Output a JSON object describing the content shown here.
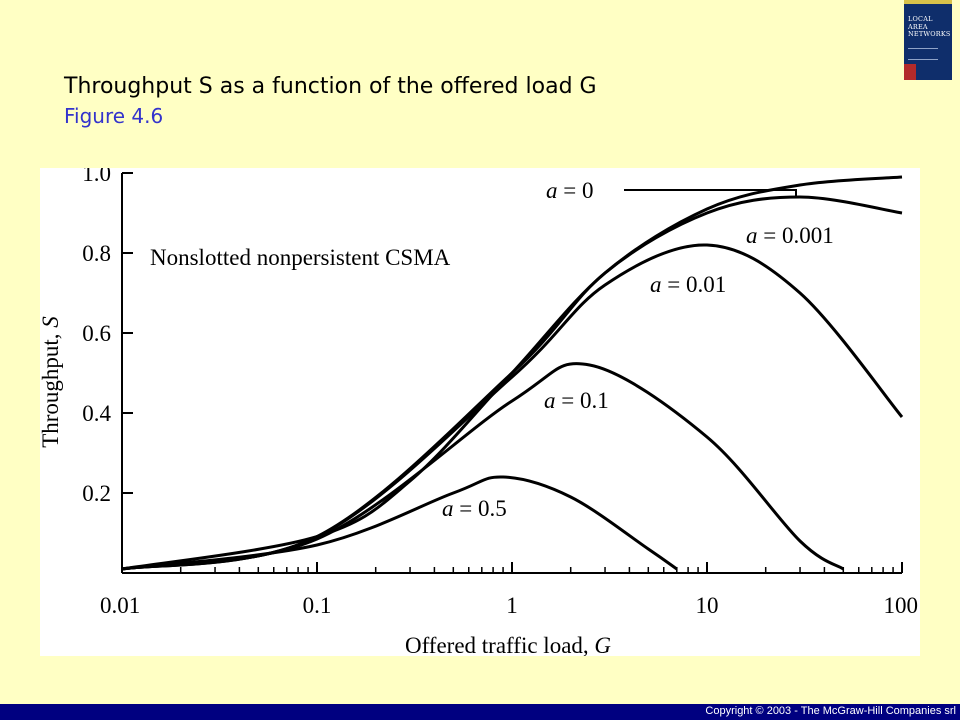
{
  "slide": {
    "title": "Throughput S as a function of the offered load G",
    "subtitle": "Figure 4.6",
    "book_cover_text": "LOCAL AREA NETWORKS",
    "copyright": "Copyright © 2003 - The McGraw-Hill Companies srl"
  },
  "chart_data": {
    "type": "line",
    "inset_label": "Nonslotted nonpersistent CSMA",
    "xlabel_text": "Offered traffic load, ",
    "xlabel_var": "G",
    "ylabel_text": "Throughput, ",
    "ylabel_var": "S",
    "x_scale": "log",
    "xlim": [
      0.01,
      100
    ],
    "ylim": [
      0,
      1.0
    ],
    "x_ticks": [
      {
        "value": 0.01,
        "label": "0.01"
      },
      {
        "value": 0.1,
        "label": "0.1"
      },
      {
        "value": 1,
        "label": "1"
      },
      {
        "value": 10,
        "label": "10"
      },
      {
        "value": 100,
        "label": "100"
      }
    ],
    "y_ticks": [
      {
        "value": 0.2,
        "label": "0.2"
      },
      {
        "value": 0.4,
        "label": "0.4"
      },
      {
        "value": 0.6,
        "label": "0.6"
      },
      {
        "value": 0.8,
        "label": "0.8"
      },
      {
        "value": 1.0,
        "label": "1.0"
      }
    ],
    "grid": false,
    "series": [
      {
        "name": "a = 0",
        "a": 0,
        "x": [
          0.01,
          0.1,
          0.3,
          1,
          3,
          10,
          30,
          100
        ],
        "y": [
          0.01,
          0.091,
          0.23,
          0.5,
          0.75,
          0.91,
          0.97,
          0.99
        ]
      },
      {
        "name": "a = 0.001",
        "a": 0.001,
        "x": [
          0.01,
          0.1,
          1,
          3,
          10,
          30,
          100
        ],
        "y": [
          0.01,
          0.091,
          0.5,
          0.75,
          0.9,
          0.94,
          0.9
        ]
      },
      {
        "name": "a = 0.01",
        "a": 0.01,
        "x": [
          0.01,
          0.1,
          1,
          3,
          10,
          30,
          100
        ],
        "y": [
          0.01,
          0.09,
          0.49,
          0.72,
          0.82,
          0.7,
          0.39
        ]
      },
      {
        "name": "a = 0.1",
        "a": 0.1,
        "x": [
          0.01,
          0.1,
          1,
          2.5,
          10,
          30,
          50
        ],
        "y": [
          0.01,
          0.085,
          0.43,
          0.52,
          0.34,
          0.08,
          0.01
        ]
      },
      {
        "name": "a = 0.5",
        "a": 0.5,
        "x": [
          0.01,
          0.1,
          0.5,
          0.9,
          2,
          5,
          7
        ],
        "y": [
          0.01,
          0.07,
          0.2,
          0.24,
          0.19,
          0.06,
          0.01
        ]
      }
    ]
  }
}
